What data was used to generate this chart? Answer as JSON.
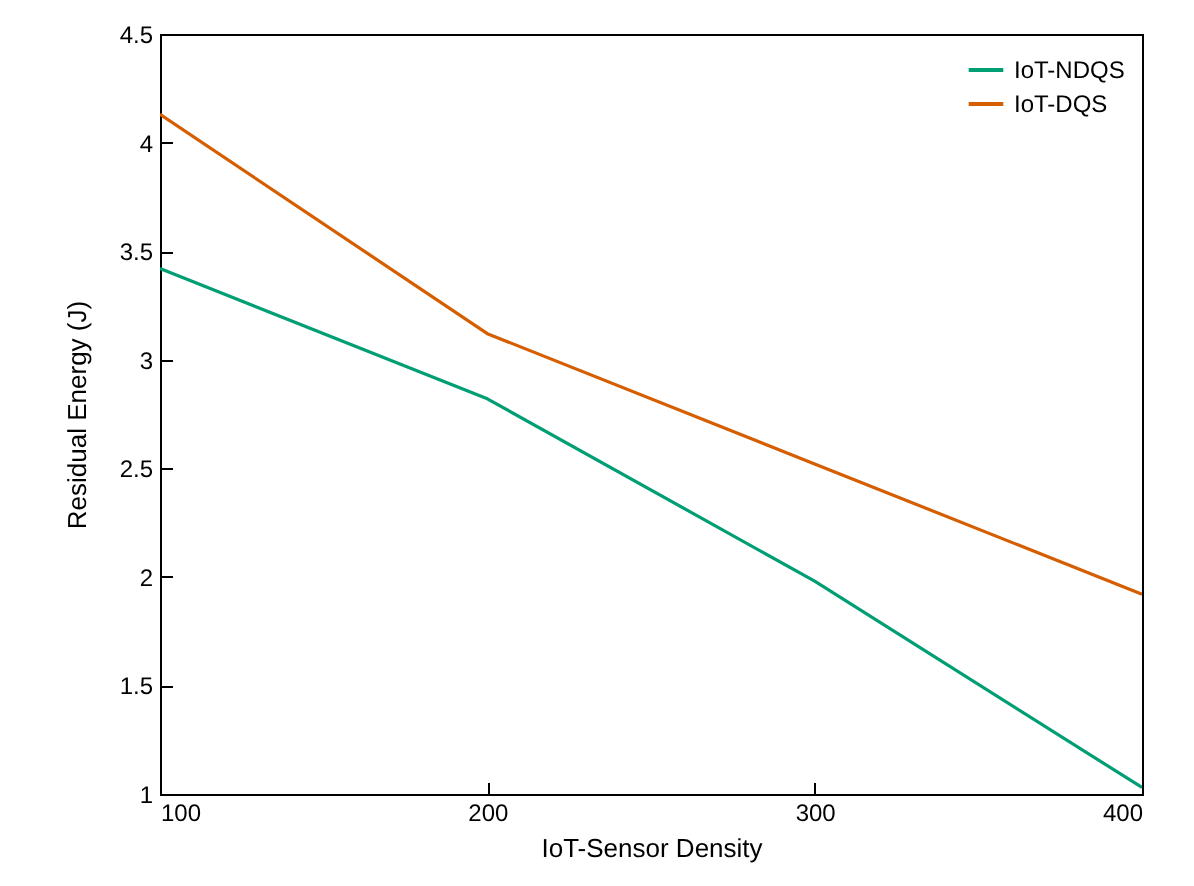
{
  "chart_data": {
    "type": "line",
    "xlabel": "IoT-Sensor Density",
    "ylabel": "Residual Energy (J)",
    "x": [
      100,
      200,
      300,
      400
    ],
    "series": [
      {
        "name": "IoT-NDQS",
        "color": "#009e73",
        "values": [
          3.42,
          2.82,
          1.98,
          1.03
        ]
      },
      {
        "name": "IoT-DQS",
        "color": "#d55e00",
        "values": [
          4.13,
          3.12,
          2.52,
          1.92
        ]
      }
    ],
    "xlim": [
      100,
      400
    ],
    "xticks": [
      100,
      200,
      300,
      400
    ],
    "ylim": [
      1,
      4.5
    ],
    "yticks": [
      1,
      1.5,
      2,
      2.5,
      3,
      3.5,
      4,
      4.5
    ],
    "legend": "top right",
    "grid": false,
    "marker": "none",
    "line_style": "solid"
  }
}
